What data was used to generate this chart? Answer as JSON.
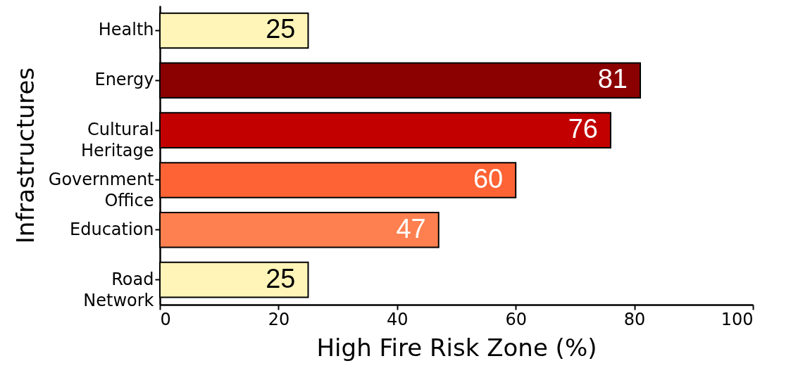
{
  "chart_data": {
    "type": "bar",
    "orientation": "horizontal",
    "xlabel": "High Fire Risk Zone (%)",
    "ylabel": "Infrastructures",
    "categories": [
      "Health",
      "Energy",
      "Cultural\nHeritage",
      "Government\nOffice",
      "Education",
      "Road\nNetwork"
    ],
    "values": [
      25,
      81,
      76,
      60,
      47,
      25
    ],
    "colors": [
      "#fff5b8",
      "#8b0000",
      "#c20000",
      "#fe6335",
      "#fe8050",
      "#fff5b8"
    ],
    "xlim": [
      0,
      100
    ],
    "xticks": [
      0,
      20,
      40,
      60,
      80,
      100
    ],
    "grid": false,
    "data_labels": true
  }
}
